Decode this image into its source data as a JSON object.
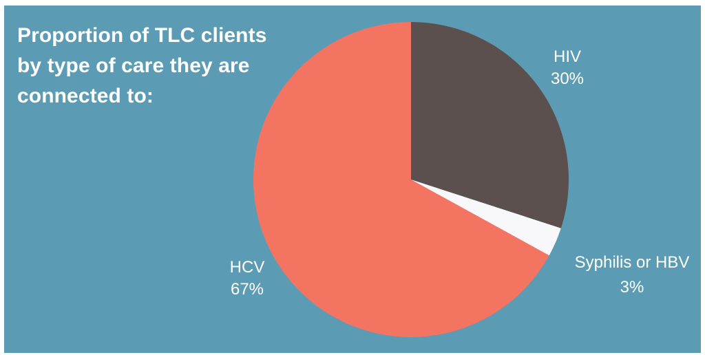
{
  "chart_data": {
    "type": "pie",
    "title": "Proportion of TLC clients\nby type of care they are\nconnected to:",
    "slices": [
      {
        "label": "HIV",
        "value": 30,
        "value_label": "30%",
        "color": "#5b504e"
      },
      {
        "label": "Syphilis or HBV",
        "value": 3,
        "value_label": "3%",
        "color": "#f8f8fb"
      },
      {
        "label": "HCV",
        "value": 67,
        "value_label": "67%",
        "color": "#f47462"
      }
    ],
    "start": "12 o'clock",
    "direction": "clockwise"
  },
  "colors": {
    "background": "#5b9bb3",
    "text": "#ffffff"
  }
}
